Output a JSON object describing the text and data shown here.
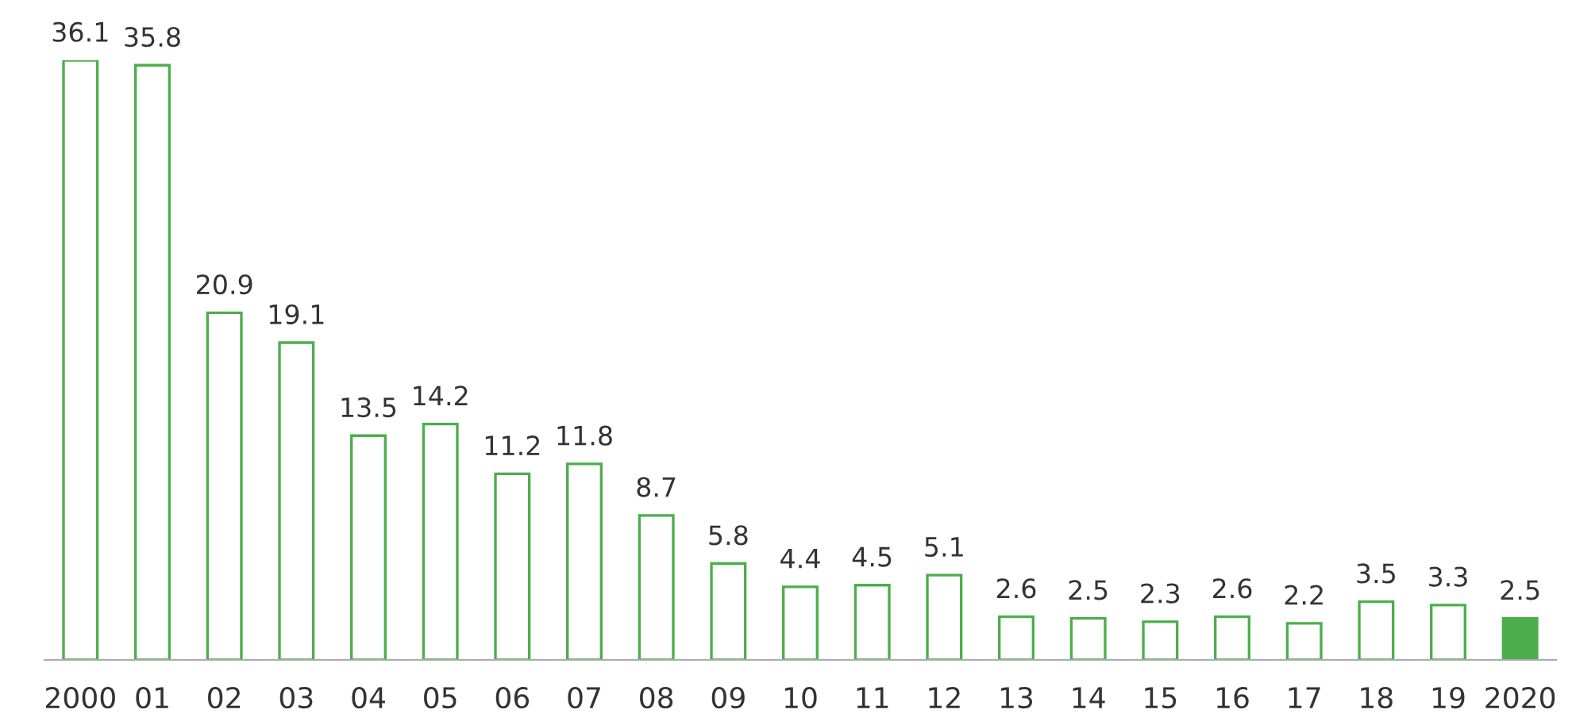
{
  "chart_data": {
    "type": "bar",
    "categories": [
      "2000",
      "01",
      "02",
      "03",
      "04",
      "05",
      "06",
      "07",
      "08",
      "09",
      "10",
      "11",
      "12",
      "13",
      "14",
      "15",
      "16",
      "17",
      "18",
      "19",
      "2020"
    ],
    "values": [
      36.1,
      35.8,
      20.9,
      19.1,
      13.5,
      14.2,
      11.2,
      11.8,
      8.7,
      5.8,
      4.4,
      4.5,
      5.1,
      2.6,
      2.5,
      2.3,
      2.6,
      2.2,
      3.5,
      3.3,
      2.5
    ],
    "color": "#4cae4c",
    "colors": [
      "#ffffff",
      "#ffffff",
      "#ffffff",
      "#ffffff",
      "#ffffff",
      "#ffffff",
      "#ffffff",
      "#ffffff",
      "#ffffff",
      "#ffffff",
      "#ffffff",
      "#ffffff",
      "#ffffff",
      "#ffffff",
      "#ffffff",
      "#ffffff",
      "#ffffff",
      "#ffffff",
      "#ffffff",
      "#ffffff",
      "#4cae4c"
    ],
    "data_labels": true
  }
}
